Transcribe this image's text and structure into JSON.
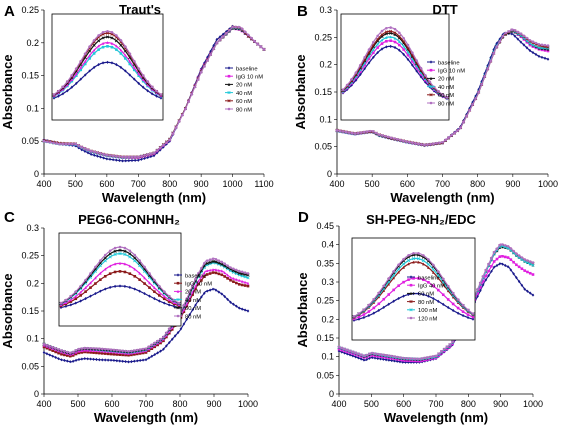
{
  "figure": {
    "colors": {
      "navy": "#1a1a8c",
      "maroon": "#8b1a1a",
      "magenta": "#e020e0",
      "cyan": "#20c8d8",
      "olive": "#6b6b3a",
      "purple": "#b070c0",
      "black": "#111111",
      "gray": "#8a8a8a",
      "pink": "#e060a0"
    }
  },
  "chart_data": [
    {
      "id": "A",
      "type": "line",
      "panel_label": "A",
      "title": "Traut's",
      "xlabel": "Wavelength (nm)",
      "ylabel": "Absorbance",
      "xlim": [
        400,
        1100
      ],
      "ylim": [
        0,
        0.25
      ],
      "xticks": [
        "400",
        "500",
        "600",
        "700",
        "800",
        "900",
        "1000",
        "1100"
      ],
      "yticks": [
        "0",
        "0.05",
        "0.1",
        "0.15",
        "0.2",
        "0.25"
      ],
      "legend_position": "inset right",
      "legend": [
        "baseline",
        "IgG 10 nM",
        "20 nM",
        "40 nM",
        "60 nM",
        "80 nM"
      ],
      "x": [
        400,
        450,
        500,
        520,
        550,
        600,
        650,
        700,
        750,
        800,
        850,
        900,
        950,
        1000,
        1025,
        1050,
        1075,
        1100
      ],
      "series": [
        {
          "name": "baseline",
          "color": "#1a1a8c",
          "values": [
            0.052,
            0.046,
            0.043,
            0.037,
            0.03,
            0.023,
            0.02,
            0.021,
            0.028,
            0.05,
            0.1,
            0.16,
            0.205,
            0.225,
            0.222,
            0.21,
            0.2,
            0.19
          ]
        },
        {
          "name": "IgG 10 nM",
          "color": "#e020e0",
          "values": [
            0.05,
            0.046,
            0.045,
            0.04,
            0.034,
            0.028,
            0.025,
            0.025,
            0.031,
            0.052,
            0.1,
            0.158,
            0.2,
            0.222,
            0.22,
            0.21,
            0.2,
            0.19
          ]
        },
        {
          "name": "20 nM",
          "color": "#111111",
          "values": [
            0.05,
            0.046,
            0.046,
            0.041,
            0.035,
            0.029,
            0.026,
            0.026,
            0.032,
            0.053,
            0.1,
            0.157,
            0.2,
            0.222,
            0.221,
            0.21,
            0.2,
            0.19
          ]
        },
        {
          "name": "40 nM",
          "color": "#20c8d8",
          "values": [
            0.05,
            0.046,
            0.045,
            0.04,
            0.034,
            0.028,
            0.025,
            0.026,
            0.032,
            0.053,
            0.1,
            0.156,
            0.2,
            0.223,
            0.222,
            0.21,
            0.2,
            0.19
          ]
        },
        {
          "name": "60 nM",
          "color": "#8b1a1a",
          "values": [
            0.051,
            0.047,
            0.046,
            0.041,
            0.035,
            0.029,
            0.026,
            0.026,
            0.032,
            0.053,
            0.1,
            0.156,
            0.2,
            0.224,
            0.223,
            0.21,
            0.2,
            0.19
          ]
        },
        {
          "name": "80 nM",
          "color": "#b070c0",
          "values": [
            0.05,
            0.046,
            0.046,
            0.041,
            0.035,
            0.029,
            0.026,
            0.026,
            0.032,
            0.052,
            0.099,
            0.155,
            0.2,
            0.224,
            0.224,
            0.212,
            0.2,
            0.19
          ]
        }
      ]
    },
    {
      "id": "B",
      "type": "line",
      "panel_label": "B",
      "title": "DTT",
      "xlabel": "Wavelength (nm)",
      "ylabel": "Absorbance",
      "xlim": [
        400,
        1000
      ],
      "ylim": [
        0,
        0.3
      ],
      "xticks": [
        "400",
        "500",
        "600",
        "700",
        "800",
        "900",
        "1000"
      ],
      "yticks": [
        "0",
        "0.05",
        "0.1",
        "0.15",
        "0.2",
        "0.25",
        "0.3"
      ],
      "legend_position": "inset right",
      "legend": [
        "baseline",
        "IgG 10 nM",
        "20 nM",
        "40 nM",
        "60 nM",
        "80 nM"
      ],
      "x": [
        400,
        450,
        500,
        520,
        550,
        600,
        650,
        700,
        750,
        800,
        850,
        875,
        900,
        925,
        950,
        975,
        1000
      ],
      "series": [
        {
          "name": "baseline",
          "color": "#1a1a8c",
          "values": [
            0.079,
            0.073,
            0.077,
            0.07,
            0.065,
            0.058,
            0.052,
            0.057,
            0.085,
            0.15,
            0.235,
            0.258,
            0.256,
            0.24,
            0.225,
            0.215,
            0.21
          ]
        },
        {
          "name": "IgG 10 nM",
          "color": "#e020e0",
          "values": [
            0.079,
            0.073,
            0.078,
            0.071,
            0.066,
            0.058,
            0.053,
            0.057,
            0.083,
            0.145,
            0.228,
            0.255,
            0.262,
            0.25,
            0.235,
            0.228,
            0.225
          ]
        },
        {
          "name": "20 nM",
          "color": "#111111",
          "values": [
            0.08,
            0.074,
            0.078,
            0.071,
            0.066,
            0.059,
            0.053,
            0.057,
            0.083,
            0.145,
            0.228,
            0.254,
            0.262,
            0.252,
            0.238,
            0.23,
            0.228
          ]
        },
        {
          "name": "40 nM",
          "color": "#20c8d8",
          "values": [
            0.079,
            0.073,
            0.078,
            0.071,
            0.066,
            0.058,
            0.053,
            0.057,
            0.083,
            0.146,
            0.23,
            0.256,
            0.263,
            0.252,
            0.238,
            0.231,
            0.23
          ]
        },
        {
          "name": "60 nM",
          "color": "#8b1a1a",
          "values": [
            0.08,
            0.074,
            0.078,
            0.072,
            0.066,
            0.059,
            0.053,
            0.057,
            0.083,
            0.145,
            0.228,
            0.255,
            0.264,
            0.255,
            0.242,
            0.235,
            0.232
          ]
        },
        {
          "name": "80 nM",
          "color": "#b070c0",
          "values": [
            0.08,
            0.074,
            0.079,
            0.072,
            0.067,
            0.059,
            0.053,
            0.058,
            0.083,
            0.145,
            0.228,
            0.256,
            0.265,
            0.256,
            0.244,
            0.237,
            0.235
          ]
        }
      ]
    },
    {
      "id": "C",
      "type": "line",
      "panel_label": "C",
      "title": "PEG6-CONHNH₂",
      "xlabel": "Wavelength (nm)",
      "ylabel": "Absorbance",
      "xlim": [
        400,
        1000
      ],
      "ylim": [
        0,
        0.3
      ],
      "xticks": [
        "400",
        "500",
        "600",
        "700",
        "800",
        "900",
        "1000"
      ],
      "yticks": [
        "0",
        "0.05",
        "0.1",
        "0.15",
        "0.2",
        "0.25",
        "0.3"
      ],
      "legend_position": "inset right",
      "legend": [
        "baseline",
        "IgG 10 nM",
        "20 nM",
        "40 nM",
        "60 nM",
        "80 nM"
      ],
      "x": [
        400,
        450,
        480,
        500,
        520,
        560,
        600,
        650,
        700,
        750,
        800,
        850,
        875,
        900,
        925,
        950,
        975,
        1000
      ],
      "series": [
        {
          "name": "baseline",
          "color": "#1a1a8c",
          "values": [
            0.075,
            0.062,
            0.058,
            0.062,
            0.064,
            0.062,
            0.061,
            0.058,
            0.062,
            0.08,
            0.115,
            0.165,
            0.185,
            0.19,
            0.18,
            0.165,
            0.155,
            0.15
          ]
        },
        {
          "name": "IgG 10 nM",
          "color": "#8b1a1a",
          "values": [
            0.085,
            0.072,
            0.068,
            0.074,
            0.076,
            0.074,
            0.072,
            0.07,
            0.075,
            0.095,
            0.135,
            0.195,
            0.215,
            0.22,
            0.215,
            0.205,
            0.198,
            0.195
          ]
        },
        {
          "name": "20 nM",
          "color": "#e020e0",
          "values": [
            0.088,
            0.076,
            0.071,
            0.077,
            0.079,
            0.078,
            0.076,
            0.073,
            0.078,
            0.098,
            0.138,
            0.2,
            0.222,
            0.225,
            0.222,
            0.21,
            0.205,
            0.2
          ]
        },
        {
          "name": "40 nM",
          "color": "#20c8d8",
          "values": [
            0.09,
            0.078,
            0.073,
            0.08,
            0.082,
            0.08,
            0.078,
            0.075,
            0.08,
            0.1,
            0.142,
            0.208,
            0.232,
            0.238,
            0.232,
            0.222,
            0.215,
            0.21
          ]
        },
        {
          "name": "60 nM",
          "color": "#111111",
          "values": [
            0.09,
            0.078,
            0.073,
            0.08,
            0.082,
            0.081,
            0.079,
            0.076,
            0.081,
            0.101,
            0.143,
            0.21,
            0.235,
            0.24,
            0.234,
            0.225,
            0.218,
            0.215
          ]
        },
        {
          "name": "80 nM",
          "color": "#b070c0",
          "values": [
            0.09,
            0.079,
            0.074,
            0.081,
            0.083,
            0.082,
            0.08,
            0.077,
            0.082,
            0.102,
            0.145,
            0.214,
            0.24,
            0.245,
            0.238,
            0.228,
            0.222,
            0.218
          ]
        }
      ]
    },
    {
      "id": "D",
      "type": "line",
      "panel_label": "D",
      "title": "SH-PEG-NH₂/EDC",
      "xlabel": "Wavelength (nm)",
      "ylabel": "Absorbance",
      "xlim": [
        400,
        1000
      ],
      "ylim": [
        0,
        0.45
      ],
      "xticks": [
        "400",
        "500",
        "600",
        "700",
        "800",
        "900",
        "1000"
      ],
      "yticks": [
        "0",
        "0.05",
        "0.1",
        "0.15",
        "0.2",
        "0.25",
        "0.3",
        "0.35",
        "0.4",
        "0.45"
      ],
      "legend_position": "inset right",
      "legend": [
        "baseline",
        "IgG 40 nM",
        "60 nM",
        "80 nM",
        "100 nM",
        "120 nM"
      ],
      "x": [
        400,
        450,
        480,
        500,
        520,
        560,
        600,
        650,
        700,
        750,
        800,
        850,
        880,
        900,
        925,
        950,
        975,
        1000
      ],
      "series": [
        {
          "name": "baseline",
          "color": "#1a1a8c",
          "values": [
            0.115,
            0.1,
            0.09,
            0.098,
            0.095,
            0.09,
            0.085,
            0.085,
            0.095,
            0.13,
            0.21,
            0.3,
            0.34,
            0.35,
            0.34,
            0.31,
            0.28,
            0.265
          ]
        },
        {
          "name": "IgG 40 nM",
          "color": "#e020e0",
          "values": [
            0.12,
            0.106,
            0.097,
            0.104,
            0.101,
            0.096,
            0.09,
            0.088,
            0.097,
            0.132,
            0.215,
            0.31,
            0.355,
            0.37,
            0.365,
            0.345,
            0.33,
            0.32
          ]
        },
        {
          "name": "60 nM",
          "color": "#111111",
          "values": [
            0.125,
            0.11,
            0.1,
            0.108,
            0.105,
            0.1,
            0.094,
            0.092,
            0.1,
            0.136,
            0.22,
            0.32,
            0.375,
            0.395,
            0.39,
            0.37,
            0.355,
            0.345
          ]
        },
        {
          "name": "80 nM",
          "color": "#8b1a1a",
          "values": [
            0.125,
            0.11,
            0.101,
            0.109,
            0.106,
            0.101,
            0.095,
            0.093,
            0.101,
            0.137,
            0.22,
            0.322,
            0.378,
            0.4,
            0.392,
            0.372,
            0.358,
            0.35
          ]
        },
        {
          "name": "100 nM",
          "color": "#20c8d8",
          "values": [
            0.125,
            0.11,
            0.101,
            0.109,
            0.106,
            0.1,
            0.095,
            0.093,
            0.1,
            0.136,
            0.22,
            0.32,
            0.376,
            0.398,
            0.39,
            0.37,
            0.355,
            0.345
          ]
        },
        {
          "name": "120 nM",
          "color": "#b070c0",
          "values": [
            0.126,
            0.111,
            0.102,
            0.11,
            0.107,
            0.102,
            0.096,
            0.094,
            0.102,
            0.138,
            0.222,
            0.324,
            0.38,
            0.402,
            0.395,
            0.375,
            0.36,
            0.352
          ]
        }
      ]
    }
  ],
  "insets": [
    {
      "panel": "A",
      "peak": 0.5,
      "series": [
        {
          "color": "#1a1a8c",
          "level": 0.55
        },
        {
          "color": "#20c8d8",
          "level": 0.72
        },
        {
          "color": "#e020e0",
          "level": 0.76
        },
        {
          "color": "#111111",
          "level": 0.82
        },
        {
          "color": "#8b1a1a",
          "level": 0.86
        },
        {
          "color": "#b070c0",
          "level": 0.88
        }
      ]
    },
    {
      "panel": "B",
      "peak": 0.45,
      "series": [
        {
          "color": "#1a1a8c",
          "level": 0.72
        },
        {
          "color": "#e020e0",
          "level": 0.78
        },
        {
          "color": "#20c8d8",
          "level": 0.82
        },
        {
          "color": "#111111",
          "level": 0.86
        },
        {
          "color": "#8b1a1a",
          "level": 0.88
        },
        {
          "color": "#b070c0",
          "level": 0.92
        }
      ]
    },
    {
      "panel": "C",
      "peak": 0.5,
      "series": [
        {
          "color": "#1a1a8c",
          "level": 0.42
        },
        {
          "color": "#8b1a1a",
          "level": 0.6
        },
        {
          "color": "#e020e0",
          "level": 0.7
        },
        {
          "color": "#20c8d8",
          "level": 0.82
        },
        {
          "color": "#111111",
          "level": 0.86
        },
        {
          "color": "#b070c0",
          "level": 0.9
        }
      ]
    },
    {
      "panel": "D",
      "peak": 0.52,
      "series": [
        {
          "color": "#1a1a8c",
          "level": 0.45
        },
        {
          "color": "#e020e0",
          "level": 0.62
        },
        {
          "color": "#8b1a1a",
          "level": 0.8
        },
        {
          "color": "#20c8d8",
          "level": 0.84
        },
        {
          "color": "#111111",
          "level": 0.88
        },
        {
          "color": "#b070c0",
          "level": 0.9
        }
      ]
    }
  ]
}
